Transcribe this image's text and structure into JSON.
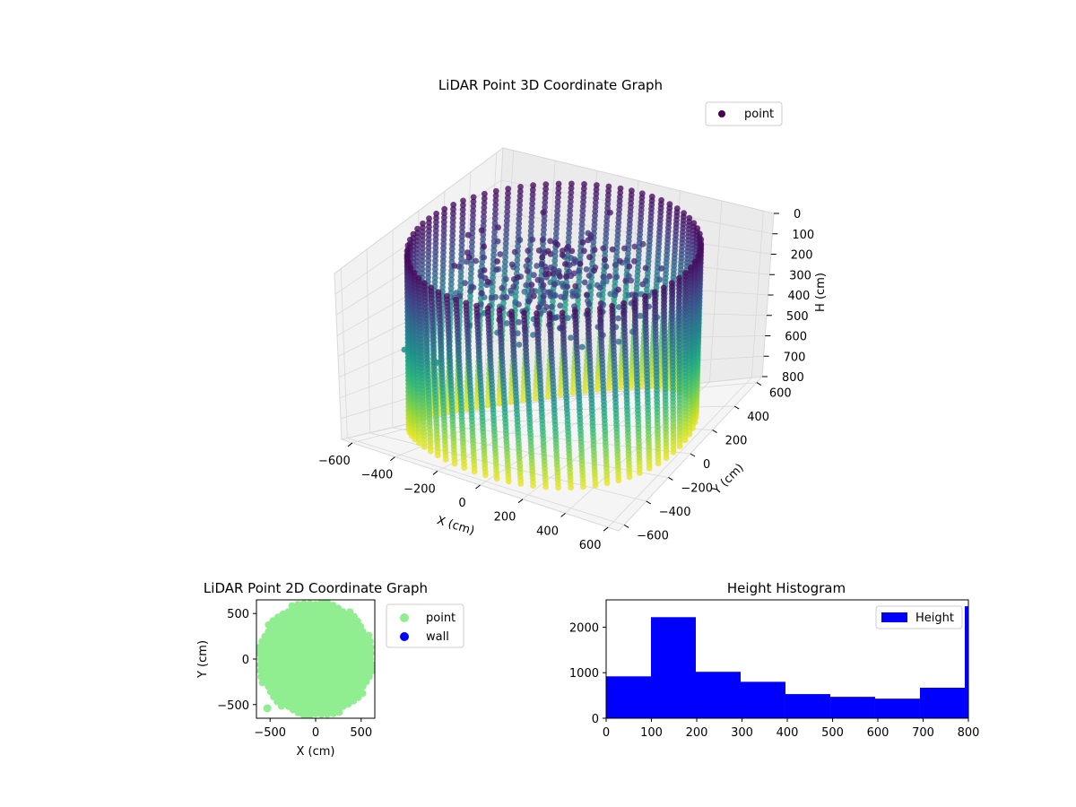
{
  "chart_data": [
    {
      "type": "scatter",
      "title": "LiDAR Point 3D Coordinate Graph",
      "xlabel": "X (cm)",
      "ylabel": "Y (cm)",
      "zlabel": "H (cm)",
      "x_ticks": [
        "−600",
        "−400",
        "−200",
        "0",
        "200",
        "400",
        "600"
      ],
      "y_ticks": [
        "−600",
        "−400",
        "−200",
        "0",
        "200",
        "400",
        "600"
      ],
      "z_ticks": [
        "0",
        "100",
        "200",
        "300",
        "400",
        "500",
        "600",
        "700",
        "800"
      ],
      "xlim": [
        -650,
        650
      ],
      "ylim": [
        -650,
        650
      ],
      "zlim": [
        0,
        800
      ],
      "z_inverted": true,
      "legend": {
        "entries": [
          "point"
        ],
        "placement": "top-right"
      },
      "colormap": "viridis (by height)",
      "series": [
        {
          "name": "point",
          "shape": "cylindrical wall, radius ~600 cm, heights 0–800 cm",
          "radius": 600
        }
      ],
      "grid": true
    },
    {
      "type": "scatter",
      "title": "LiDAR Point 2D Coordinate Graph",
      "xlabel": "X (cm)",
      "ylabel": "Y (cm)",
      "x_ticks": [
        "−500",
        "0",
        "500"
      ],
      "y_ticks": [
        "−500",
        "0",
        "500"
      ],
      "xlim": [
        -650,
        650
      ],
      "ylim": [
        -650,
        650
      ],
      "legend": {
        "entries": [
          "point",
          "wall"
        ],
        "placement": "outside right"
      },
      "series": [
        {
          "name": "point",
          "color": "#90ee90",
          "shape": "filled disc, radius ~620 cm"
        },
        {
          "name": "wall",
          "color": "#0000ff"
        }
      ]
    },
    {
      "type": "bar",
      "title": "Height Histogram",
      "x_ticks": [
        "0",
        "100",
        "200",
        "300",
        "400",
        "500",
        "600",
        "700",
        "800"
      ],
      "y_ticks": [
        "0",
        "1000",
        "2000"
      ],
      "xlim": [
        0,
        800
      ],
      "ylim": [
        0,
        2600
      ],
      "legend": {
        "entries": [
          "Height"
        ],
        "placement": "top-right"
      },
      "bin_edges": [
        0,
        99,
        198,
        297,
        396,
        495,
        594,
        693,
        792,
        800
      ],
      "values": [
        920,
        2220,
        1020,
        800,
        530,
        470,
        430,
        670,
        2460
      ],
      "series": [
        {
          "name": "Height",
          "color": "#0000ff"
        }
      ]
    }
  ]
}
